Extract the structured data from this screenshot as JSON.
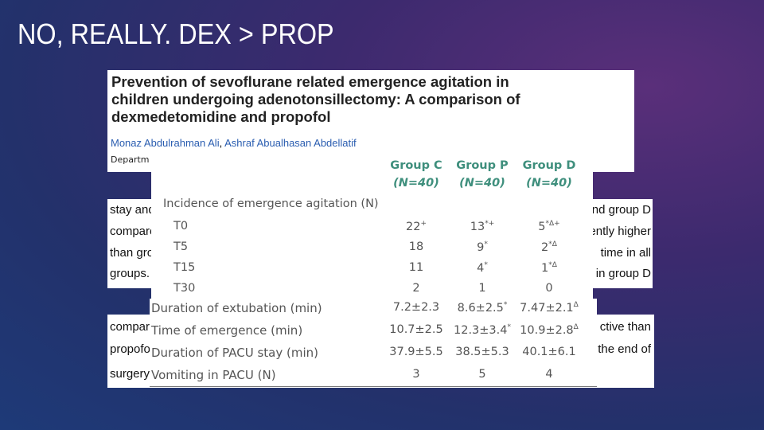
{
  "slide": {
    "title": "NO, REALLY. DEX > PROP"
  },
  "paper": {
    "title_lines": [
      "Prevention of sevoflurane related emergence agitation in",
      "children undergoing adenotonsillectomy: A comparison of",
      "dexmedetomidine and propofol"
    ],
    "authors": [
      "Monaz Abdulrahman Ali",
      ",",
      "Ashraf Abualhasan Abdellatif"
    ],
    "affiliation": "Departm"
  },
  "snippets": {
    "upper_left": [
      "stay and",
      "compare",
      "than gro",
      "groups."
    ],
    "upper_right": [
      "nd group D",
      "ently higher",
      "time in all",
      "in group D"
    ],
    "lower_left": [
      "compare",
      "propofol",
      "surgery"
    ],
    "lower_right": [
      "ctive than",
      "the end of"
    ]
  },
  "table": {
    "columns": [
      [
        "Group C",
        "(N=40)"
      ],
      [
        "Group P",
        "(N=40)"
      ],
      [
        "Group D",
        "(N=40)"
      ]
    ],
    "section": "Incidence of emergence agitation (N)",
    "sub_rows": [
      {
        "label": "T0",
        "cells": [
          {
            "value": "22",
            "sup": "+"
          },
          {
            "value": "13",
            "sup": "*+"
          },
          {
            "value": "5",
            "sup": "*Δ+"
          }
        ]
      },
      {
        "label": "T5",
        "cells": [
          "18",
          {
            "value": "9",
            "sup": "*"
          },
          {
            "value": "2",
            "sup": "*Δ"
          }
        ]
      },
      {
        "label": "T15",
        "cells": [
          "11",
          {
            "value": "4",
            "sup": "*"
          },
          {
            "value": "1",
            "sup": "*Δ"
          }
        ]
      },
      {
        "label": "T30",
        "cells": [
          "2",
          "1",
          "0"
        ]
      }
    ],
    "rows": [
      {
        "label": "Duration of extubation (min)",
        "cells": [
          "7.2±2.3",
          {
            "value": "8.6±2.5",
            "sup": "*"
          },
          {
            "value": "7.47±2.1",
            "sup": "Δ"
          }
        ]
      },
      {
        "label": "Time of emergence (min)",
        "cells": [
          "10.7±2.5",
          {
            "value": "12.3±3.4",
            "sup": "*"
          },
          {
            "value": "10.9±2.8",
            "sup": "Δ"
          }
        ]
      },
      {
        "label": "Duration of PACU stay (min)",
        "cells": [
          "37.9±5.5",
          "38.5±5.3",
          "40.1±6.1"
        ]
      },
      {
        "label": "Vomiting in PACU (N)",
        "cells": [
          "3",
          "5",
          "4"
        ]
      }
    ]
  }
}
